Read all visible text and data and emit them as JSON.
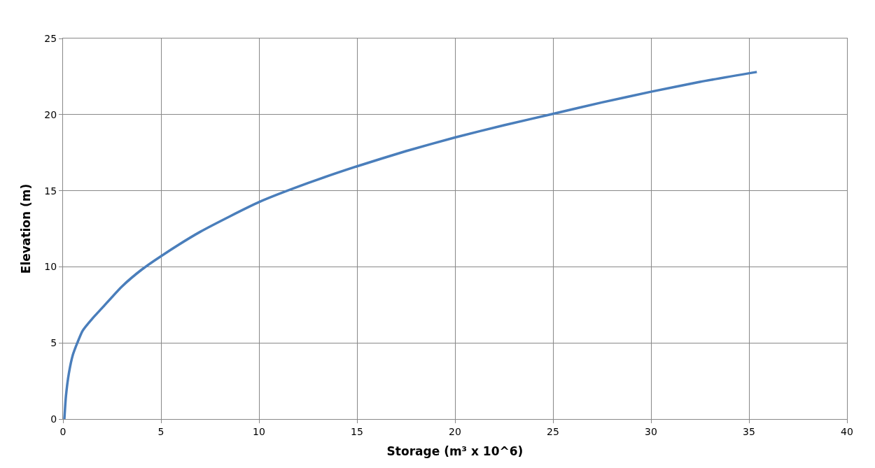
{
  "chart_data": {
    "type": "line",
    "xlabel": "Storage (m³ x 10^6)",
    "ylabel": "Elevation (m)",
    "x": [
      0.07,
      0.15,
      0.3,
      0.5,
      0.73,
      1,
      1.5,
      2,
      3,
      4,
      5,
      7,
      10,
      12.5,
      15,
      17.5,
      20,
      22.5,
      25,
      27.5,
      30,
      32.5,
      35.4
    ],
    "series": [
      {
        "color": "#4a7ebb",
        "values": [
          0,
          1.5,
          3,
          4.2,
          5,
          5.8,
          6.6,
          7.3,
          8.7,
          9.8,
          10.7,
          12.3,
          14.25,
          15.5,
          16.6,
          17.6,
          18.5,
          19.3,
          20.05,
          20.8,
          21.5,
          22.15,
          22.8
        ]
      }
    ],
    "xlim": [
      0,
      40
    ],
    "xticks": [
      0,
      5,
      10,
      15,
      20,
      25,
      30,
      35,
      40
    ],
    "ylim": [
      0,
      25
    ],
    "yticks": [
      0,
      5,
      10,
      15,
      20,
      25
    ],
    "grid": true,
    "marker": "none",
    "line_style": "solid"
  }
}
